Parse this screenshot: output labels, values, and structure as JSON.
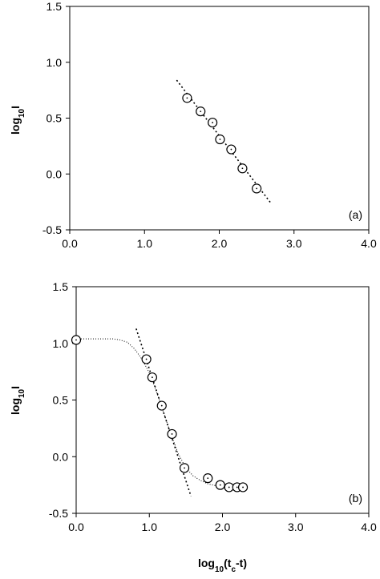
{
  "chart_data": [
    {
      "type": "scatter",
      "annotation": "(a)",
      "ylabel": [
        "log",
        "10",
        "I"
      ],
      "x": [
        1.57,
        1.75,
        1.91,
        2.01,
        2.16,
        2.31,
        2.5
      ],
      "values": [
        0.68,
        0.56,
        0.46,
        0.31,
        0.22,
        0.05,
        -0.13
      ],
      "fit": {
        "x": [
          1.43,
          2.69
        ],
        "values": [
          0.84,
          -0.26
        ]
      },
      "xlim": [
        0,
        4
      ],
      "ylim": [
        -0.5,
        1.5
      ],
      "xticks": [
        {
          "value": 0,
          "label": "0.0"
        },
        {
          "value": 1,
          "label": "1.0"
        },
        {
          "value": 2,
          "label": "2.0"
        },
        {
          "value": 3,
          "label": "3.0"
        },
        {
          "value": 4,
          "label": "4.0"
        }
      ],
      "yticks": [
        {
          "value": -0.5,
          "label": "-0.5"
        },
        {
          "value": 0,
          "label": "0.0"
        },
        0.5,
        {
          "value": 1,
          "label": "1.0"
        },
        1.5
      ]
    },
    {
      "type": "scatter",
      "annotation": "(b)",
      "ylabel": [
        "log",
        "10",
        "I"
      ],
      "xlabel": [
        "log",
        "10",
        "(t",
        "c",
        "-t)"
      ],
      "x": [
        0.0,
        0.96,
        1.04,
        1.17,
        1.31,
        1.48,
        1.8,
        1.97,
        2.09,
        2.2,
        2.28
      ],
      "values": [
        1.03,
        0.86,
        0.7,
        0.45,
        0.2,
        -0.1,
        -0.19,
        -0.25,
        -0.27,
        -0.27,
        -0.27
      ],
      "fit": {
        "x": [
          0.82,
          1.57
        ],
        "values": [
          1.13,
          -0.35
        ]
      },
      "curve": {
        "x": [
          0,
          0.3,
          0.5,
          0.6,
          0.7,
          0.8,
          0.9,
          1.0,
          1.1,
          1.2,
          1.3,
          1.4,
          1.5,
          1.6,
          1.7,
          1.8,
          1.9,
          2.0,
          2.1,
          2.2,
          2.3
        ],
        "values": [
          1.04,
          1.04,
          1.04,
          1.03,
          1.01,
          0.95,
          0.86,
          0.74,
          0.57,
          0.38,
          0.19,
          0.02,
          -0.1,
          -0.17,
          -0.21,
          -0.24,
          -0.255,
          -0.265,
          -0.27,
          -0.27,
          -0.27
        ]
      },
      "xlim": [
        0,
        4
      ],
      "ylim": [
        -0.5,
        1.5
      ],
      "xticks": [
        {
          "value": 0,
          "label": "0.0"
        },
        {
          "value": 1,
          "label": "1.0"
        },
        {
          "value": 2,
          "label": "2.0"
        },
        {
          "value": 3,
          "label": "3.0"
        },
        {
          "value": 4,
          "label": "4.0"
        }
      ],
      "yticks": [
        {
          "value": -0.5,
          "label": "-0.5"
        },
        {
          "value": 0,
          "label": "0.0"
        },
        0.5,
        {
          "value": 1,
          "label": "1.0"
        },
        1.5
      ]
    }
  ]
}
